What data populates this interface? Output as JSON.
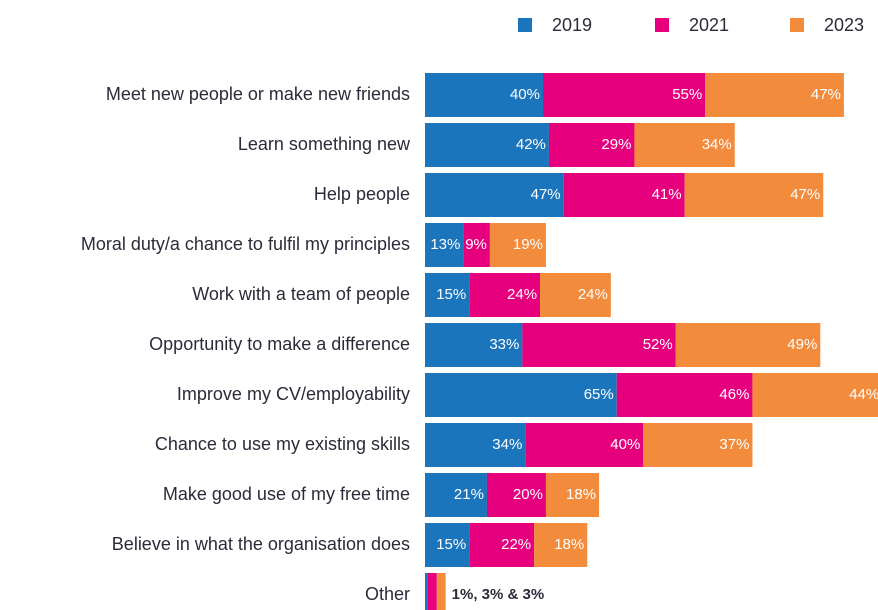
{
  "chart_data": {
    "type": "stacked-bar-horizontal",
    "categories": [
      "Meet new people or make new friends",
      "Learn something new",
      "Help people",
      "Moral duty/a chance to fulfil my principles",
      "Work with a team of people",
      "Opportunity to make a difference",
      "Improve my CV/employability",
      "Chance to use my existing skills",
      "Make good use of my free time",
      "Believe in what the organisation does",
      "Other"
    ],
    "series": [
      {
        "name": "2019",
        "color": "#1b75bc",
        "values": [
          40,
          42,
          47,
          13,
          15,
          33,
          65,
          34,
          21,
          15,
          1
        ],
        "value_labels": [
          "40%",
          "42%",
          "47%",
          "13%",
          "15%",
          "33%",
          "65%",
          "34%",
          "21%",
          "15%",
          null
        ]
      },
      {
        "name": "2021",
        "color": "#e6007e",
        "values": [
          55,
          29,
          41,
          9,
          24,
          52,
          46,
          40,
          20,
          22,
          3
        ],
        "value_labels": [
          "55%",
          "29%",
          "41%",
          "9%",
          "24%",
          "52%",
          "46%",
          "40%",
          "20%",
          "22%",
          null
        ]
      },
      {
        "name": "2023",
        "color": "#f28b3b",
        "values": [
          47,
          34,
          47,
          19,
          24,
          49,
          44,
          37,
          18,
          18,
          3
        ],
        "value_labels": [
          "47%",
          "34%",
          "47%",
          "19%",
          "24%",
          "49%",
          "44%",
          "37%",
          "18%",
          "18%",
          null
        ]
      }
    ],
    "annotations": [
      "1%, 3% & 3%"
    ],
    "legend": "top-right"
  }
}
